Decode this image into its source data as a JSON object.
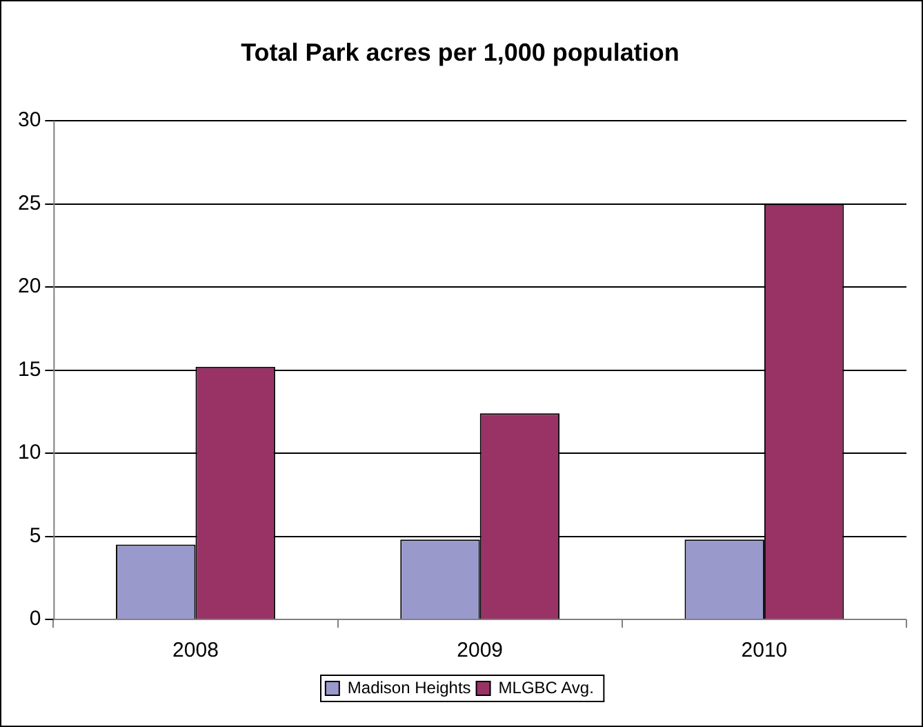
{
  "chart_data": {
    "type": "bar",
    "title": "Total Park acres per 1,000 population",
    "categories": [
      "2008",
      "2009",
      "2010"
    ],
    "series": [
      {
        "name": "Madison Heights",
        "color": "#9999cc",
        "values": [
          4.5,
          4.8,
          4.8
        ]
      },
      {
        "name": "MLGBC Avg.",
        "color": "#993366",
        "values": [
          15.2,
          12.4,
          25
        ]
      }
    ],
    "ylim": [
      0,
      30
    ],
    "yticks": [
      0,
      5,
      10,
      15,
      20,
      25,
      30
    ],
    "grid": "y",
    "legend": "bottom"
  }
}
